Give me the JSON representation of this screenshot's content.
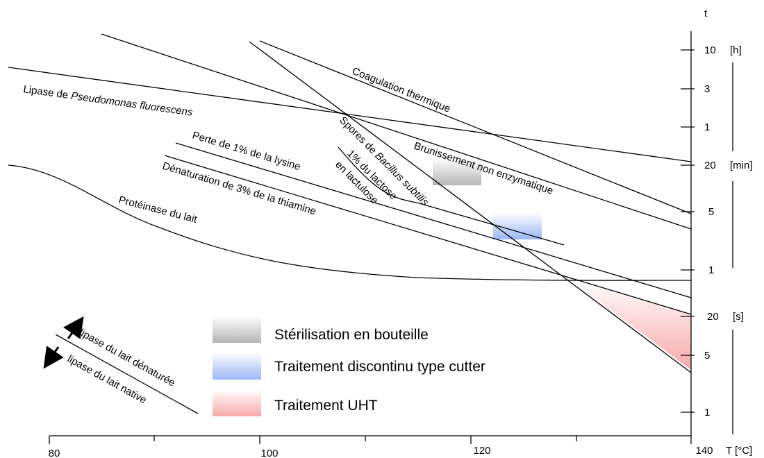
{
  "chart_data": {
    "type": "line",
    "x_axis": {
      "title": "T [°C]",
      "ticks": [
        80,
        100,
        120,
        140
      ],
      "range": [
        80,
        140
      ]
    },
    "y_axis": {
      "title": "t",
      "scale": "log",
      "units": [
        "[h]",
        "[min]",
        "[s]"
      ],
      "hour_ticks": [
        10,
        3,
        1
      ],
      "minute_ticks": [
        20,
        5,
        1
      ],
      "second_ticks": [
        20,
        5,
        1
      ]
    },
    "curves": [
      {
        "label_parts": [
          "Lipase de ",
          "Pseudomonas fluorescens",
          ""
        ],
        "points": [
          [
            76,
            36000
          ],
          [
            140,
            1200
          ]
        ]
      },
      {
        "label_parts": [
          "Coagulation thermique",
          "",
          ""
        ],
        "points": [
          [
            100,
            58000
          ],
          [
            140,
            300
          ]
        ]
      },
      {
        "label_parts": [
          "Brunissement non enzymatique",
          "",
          ""
        ],
        "points": [
          [
            85,
            60000
          ],
          [
            140,
            200
          ]
        ]
      },
      {
        "label_parts": [
          "Spores de ",
          "Bacillus subtilis",
          ""
        ],
        "points": [
          [
            99,
            53000
          ],
          [
            140,
            4
          ]
        ]
      },
      {
        "label_parts": [
          "1% du lactose",
          "",
          ""
        ],
        "points": [
          [
            113,
            1200
          ],
          [
            116.5,
            300
          ],
          [
            122,
            180
          ],
          [
            127.5,
            120
          ]
        ]
      },
      {
        "label_parts": [
          "en lactulose",
          "",
          ""
        ],
        "points": []
      },
      {
        "label_parts": [
          "Perte de 1% de la lysine",
          "",
          ""
        ],
        "points": [
          [
            92,
            1700
          ],
          [
            140,
            40
          ]
        ]
      },
      {
        "label_parts": [
          "Dénaturation de 3% de la thiamine",
          "",
          ""
        ],
        "points": [
          [
            91,
            1000
          ],
          [
            140,
            19
          ]
        ]
      },
      {
        "label_parts": [
          "Protéinase du lait",
          "",
          ""
        ],
        "points": [
          [
            76,
            900
          ],
          [
            89,
            400
          ],
          [
            95,
            170
          ],
          [
            104,
            110
          ],
          [
            118,
            75
          ],
          [
            140,
            70
          ]
        ]
      },
      {
        "label_parts": [
          "lipase du lait dénaturée",
          "",
          ""
        ],
        "points": []
      },
      {
        "label_parts": [
          "lipase du lait native",
          "",
          ""
        ],
        "points": []
      }
    ],
    "processes": [
      {
        "name": "Stérilisation en bouteille",
        "color": "#b5b5b5",
        "t_range_c": [
          117,
          121
        ],
        "time_range_s": [
          660,
          1200
        ]
      },
      {
        "name": "Traitement discontinu type cutter",
        "color": "#9bb7f4",
        "t_range_c": [
          122,
          126.5
        ],
        "time_range_s": [
          150,
          290
        ]
      },
      {
        "name": "Traitement UHT",
        "color": "#f7a9a9",
        "t_range_c": [
          128.5,
          140
        ],
        "time_range_s": [
          4,
          55
        ]
      }
    ],
    "colors": {
      "axis": "#000000",
      "curve": "#000000"
    }
  }
}
